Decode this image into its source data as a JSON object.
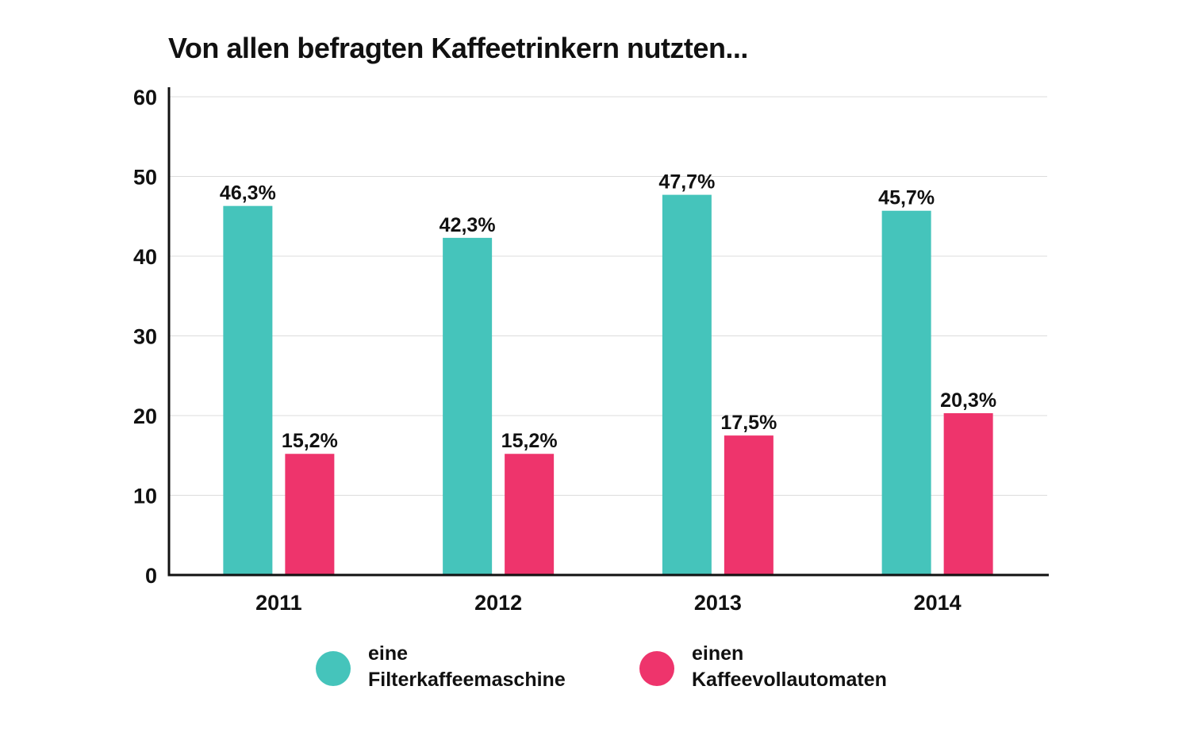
{
  "chart_data": {
    "type": "bar",
    "title": "Von allen befragten Kaffeetrinkern nutzten...",
    "categories": [
      "2011",
      "2012",
      "2013",
      "2014"
    ],
    "series": [
      {
        "name": "eine Filterkaffeemaschine",
        "color": "#45c4bb",
        "values": [
          46.3,
          42.3,
          47.7,
          45.7
        ],
        "labels": [
          "46,3%",
          "42,3%",
          "47,7%",
          "45,7%"
        ]
      },
      {
        "name": "einen Kaffeevollautomaten",
        "color": "#ee346c",
        "values": [
          15.2,
          15.2,
          17.5,
          20.3
        ],
        "labels": [
          "15,2%",
          "15,2%",
          "17,5%",
          "20,3%"
        ]
      }
    ],
    "ylim": [
      0,
      60
    ],
    "yticks": [
      0,
      10,
      20,
      30,
      40,
      50,
      60
    ],
    "grid": true,
    "legend_position": "bottom"
  },
  "legend": {
    "items": [
      {
        "line1": "eine",
        "line2": "Filterkaffeemaschine",
        "color": "#45c4bb"
      },
      {
        "line1": "einen",
        "line2": "Kaffeevollautomaten",
        "color": "#ee346c"
      }
    ]
  }
}
